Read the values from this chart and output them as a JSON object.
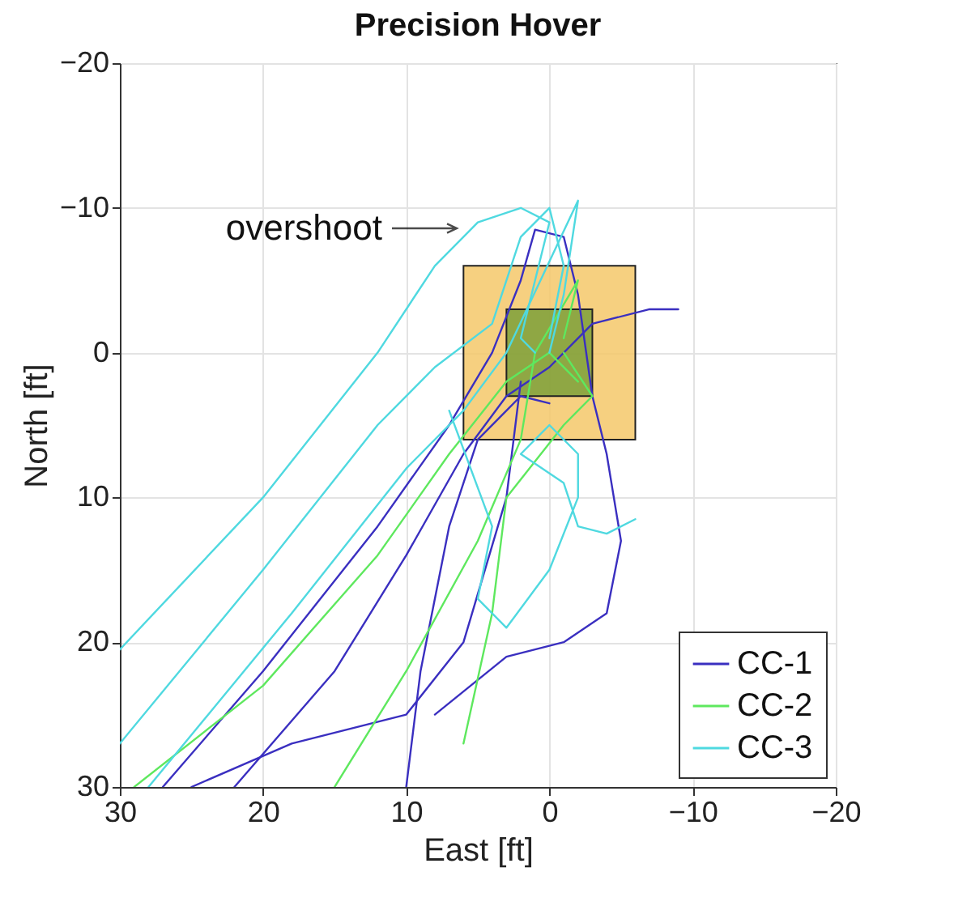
{
  "chart_data": {
    "type": "line",
    "title": "Precision Hover",
    "xlabel": "East [ft]",
    "ylabel": "North [ft]",
    "xlim": [
      30,
      -20
    ],
    "xticks": [
      30,
      20,
      10,
      0,
      -10,
      -20
    ],
    "ylim": [
      30,
      -20
    ],
    "yticks": [
      -20,
      -10,
      0,
      10,
      20,
      30
    ],
    "grid": true,
    "legend": "bottom right",
    "line_style": "solid",
    "annotations": [
      "overshoot"
    ],
    "series": [
      {
        "name": "CC-1",
        "color": "#3a2fc0",
        "x": [
          27,
          20,
          12,
          7,
          4,
          2,
          1,
          -1,
          -2,
          -3,
          -4,
          -5,
          -4,
          -1,
          3,
          8
        ],
        "values": [
          30,
          22,
          12,
          5,
          0,
          -5,
          -8.5,
          -8,
          -4,
          3,
          7,
          13,
          18,
          20,
          21,
          25
        ]
      },
      {
        "color": "#3a2fc0",
        "x": [
          22,
          15,
          10,
          6,
          3,
          0,
          -3,
          -7,
          -9
        ],
        "values": [
          30,
          22,
          14,
          7,
          3,
          1,
          -2,
          -3,
          -3
        ]
      },
      {
        "color": "#3a2fc0",
        "x": [
          10,
          9,
          7,
          5,
          2,
          0
        ],
        "values": [
          30,
          22,
          12,
          6,
          3,
          3.5
        ]
      },
      {
        "color": "#3a2fc0",
        "x": [
          25,
          18,
          10,
          6,
          3,
          2
        ],
        "values": [
          30,
          27,
          25,
          20,
          10,
          2
        ]
      },
      {
        "name": "CC-2",
        "color": "#5ee85e",
        "x": [
          29,
          20,
          12,
          7,
          3,
          0,
          -2
        ],
        "values": [
          30,
          23,
          14,
          7,
          2,
          0,
          2
        ]
      },
      {
        "color": "#5ee85e",
        "x": [
          15,
          10,
          5,
          2,
          1,
          -2,
          -1
        ],
        "values": [
          30,
          22,
          13,
          6,
          0,
          -5,
          -1
        ]
      },
      {
        "color": "#5ee85e",
        "x": [
          6,
          4,
          3,
          -1,
          -3,
          -1
        ],
        "values": [
          27,
          18,
          10,
          5,
          3,
          0
        ]
      },
      {
        "name": "CC-3",
        "color": "#4fd9e0",
        "x": [
          30,
          20,
          12,
          8,
          5,
          2,
          0,
          1,
          2,
          1
        ],
        "values": [
          20.5,
          10,
          0,
          -6,
          -9,
          -10,
          -9,
          -5,
          -1,
          0
        ]
      },
      {
        "color": "#4fd9e0",
        "x": [
          30,
          20,
          12,
          8,
          4,
          2,
          0,
          -1,
          0
        ],
        "values": [
          27,
          15,
          5,
          1,
          -2,
          -8,
          -10,
          -6,
          -1
        ]
      },
      {
        "color": "#4fd9e0",
        "x": [
          28,
          18,
          10,
          6,
          3,
          -2,
          -1,
          0
        ],
        "values": [
          30,
          18,
          8,
          4,
          0,
          -10.5,
          -4,
          0
        ]
      },
      {
        "color": "#4fd9e0",
        "x": [
          7,
          4,
          5,
          3,
          0,
          -2,
          -2,
          0,
          2,
          -1,
          -2,
          -4,
          -6
        ],
        "values": [
          4,
          12,
          17,
          19,
          15,
          10,
          7,
          5,
          7,
          9,
          12,
          12.5,
          11.5
        ]
      }
    ]
  }
}
